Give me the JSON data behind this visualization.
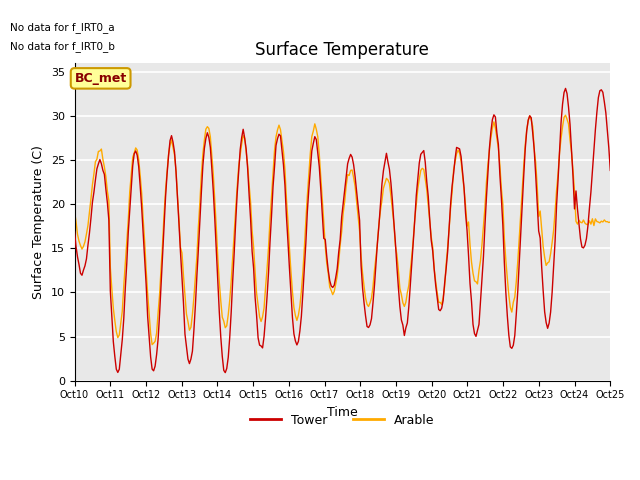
{
  "title": "Surface Temperature",
  "ylabel": "Surface Temperature (C)",
  "xlabel": "Time",
  "no_data_text": [
    "No data for f_IRT0_a",
    "No data for f_IRT0_b"
  ],
  "bc_met_label": "BC_met",
  "legend_entries": [
    "Tower",
    "Arable"
  ],
  "tower_color": "#cc0000",
  "arable_color": "#ffaa00",
  "plot_bg_color": "#e8e8e8",
  "fig_bg_color": "#ffffff",
  "grid_color": "#ffffff",
  "ylim": [
    0,
    36
  ],
  "yticks": [
    0,
    5,
    10,
    15,
    20,
    25,
    30,
    35
  ],
  "xtick_labels": [
    "Oct 10",
    "Oct 11",
    "Oct 12",
    "Oct 13",
    "Oct 14",
    "Oct 15",
    "Oct 16",
    "Oct 17",
    "Oct 18",
    "Oct 19",
    "Oct 20",
    "Oct 21",
    "Oct 22",
    "Oct 23",
    "Oct 24",
    "Oct 25"
  ],
  "title_fontsize": 12,
  "axis_fontsize": 9,
  "tick_fontsize": 8,
  "tower_mins": [
    12,
    1,
    1,
    2,
    1,
    3.5,
    4,
    10.5,
    6,
    5.5,
    8,
    5,
    3.5,
    6,
    15
  ],
  "tower_maxs": [
    25,
    26,
    27.5,
    28,
    28,
    28,
    27.5,
    25.5,
    25,
    26,
    26.5,
    30,
    30,
    33,
    33
  ],
  "arable_mins": [
    15,
    5,
    4,
    6,
    6,
    7,
    7,
    10,
    8.5,
    8.5,
    8.5,
    11,
    8,
    13,
    18
  ],
  "arable_maxs": [
    26,
    26.5,
    27,
    29,
    27.5,
    29,
    29,
    24,
    23,
    24,
    26,
    29,
    30,
    30,
    18
  ]
}
